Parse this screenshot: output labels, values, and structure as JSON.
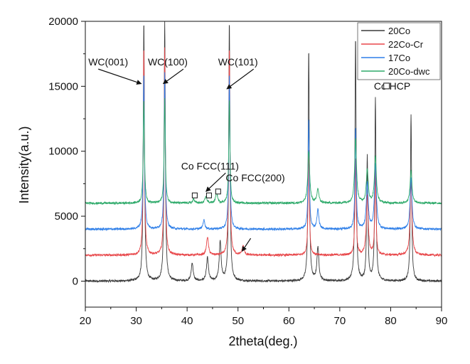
{
  "chart_data": {
    "type": "line",
    "title": "",
    "xlabel": "2theta(deg.)",
    "ylabel": "Intensity(a.u.)",
    "xlim": [
      20,
      90
    ],
    "ylim": [
      -2000,
      20000
    ],
    "x_ticks": [
      20,
      30,
      40,
      50,
      60,
      70,
      80,
      90
    ],
    "y_ticks": [
      0,
      5000,
      10000,
      15000,
      20000
    ],
    "grid": false,
    "legend_position": "top-right",
    "series": [
      {
        "name": "20Co",
        "color": "#3a3a3a",
        "offset": 0,
        "peaks": [
          {
            "x": 31.5,
            "y": 20000
          },
          {
            "x": 35.6,
            "y": 20000
          },
          {
            "x": 41.0,
            "y": 1400
          },
          {
            "x": 44.0,
            "y": 1800
          },
          {
            "x": 46.5,
            "y": 3000
          },
          {
            "x": 48.3,
            "y": 20000
          },
          {
            "x": 63.9,
            "y": 17800
          },
          {
            "x": 65.7,
            "y": 2600
          },
          {
            "x": 73.1,
            "y": 18800
          },
          {
            "x": 75.4,
            "y": 9600
          },
          {
            "x": 77.0,
            "y": 14100
          },
          {
            "x": 84.0,
            "y": 12800
          }
        ]
      },
      {
        "name": "22Co-Cr",
        "color": "#e8474a",
        "offset": 2000,
        "peaks": [
          {
            "x": 31.5,
            "y": 18000
          },
          {
            "x": 35.6,
            "y": 18000
          },
          {
            "x": 44.0,
            "y": 3400
          },
          {
            "x": 48.3,
            "y": 18000
          },
          {
            "x": 51.0,
            "y": 2700
          },
          {
            "x": 63.9,
            "y": 10300
          },
          {
            "x": 73.1,
            "y": 9500
          },
          {
            "x": 75.4,
            "y": 6600
          },
          {
            "x": 77.0,
            "y": 8600
          },
          {
            "x": 84.0,
            "y": 7600
          }
        ]
      },
      {
        "name": "17Co",
        "color": "#2f7fe8",
        "offset": 4000,
        "peaks": [
          {
            "x": 31.5,
            "y": 16000
          },
          {
            "x": 35.6,
            "y": 16000
          },
          {
            "x": 43.3,
            "y": 4700
          },
          {
            "x": 48.3,
            "y": 16000
          },
          {
            "x": 63.9,
            "y": 12500
          },
          {
            "x": 65.7,
            "y": 5500
          },
          {
            "x": 73.1,
            "y": 11800
          },
          {
            "x": 75.4,
            "y": 7500
          },
          {
            "x": 77.0,
            "y": 9000
          },
          {
            "x": 84.0,
            "y": 8000
          }
        ]
      },
      {
        "name": "20Co-dwc",
        "color": "#2eaa6a",
        "offset": 6000,
        "peaks": [
          {
            "x": 31.5,
            "y": 14000
          },
          {
            "x": 35.6,
            "y": 14000
          },
          {
            "x": 41.3,
            "y": 6300
          },
          {
            "x": 43.7,
            "y": 6500
          },
          {
            "x": 45.8,
            "y": 6800
          },
          {
            "x": 48.3,
            "y": 14000
          },
          {
            "x": 63.9,
            "y": 10000
          },
          {
            "x": 65.7,
            "y": 7100
          },
          {
            "x": 73.1,
            "y": 11000
          },
          {
            "x": 75.4,
            "y": 8600
          },
          {
            "x": 77.0,
            "y": 9600
          },
          {
            "x": 84.0,
            "y": 8500
          }
        ]
      }
    ],
    "annotations": [
      {
        "text": "WC(001)",
        "x": 24.5,
        "y": 16600,
        "arrow_to": [
          31.0,
          15200
        ]
      },
      {
        "text": "WC(100)",
        "x": 36.2,
        "y": 16600,
        "arrow_to": [
          35.3,
          15200
        ]
      },
      {
        "text": "WC(101)",
        "x": 50.0,
        "y": 16600,
        "arrow_to": [
          47.8,
          14800
        ]
      },
      {
        "text": "Co FCC(111)",
        "x": 44.5,
        "y": 8600,
        "arrow_to": [
          43.7,
          6900
        ]
      },
      {
        "text": "Co FCC(200)",
        "x": 53.4,
        "y": 7700,
        "arrow_to": null
      },
      {
        "text": "Co HCP",
        "x": 80.3,
        "y": 14750,
        "arrow_to": null
      }
    ],
    "arrow_only": [
      {
        "from": [
          52.5,
          3300
        ],
        "to": [
          50.8,
          2300
        ]
      }
    ],
    "hcp_markers": [
      {
        "x": 41.5,
        "y": 6600
      },
      {
        "x": 44.3,
        "y": 6600
      },
      {
        "x": 46.1,
        "y": 6900
      }
    ],
    "hcp_legend_marker": {
      "x": 79.2,
      "y": 14750
    }
  }
}
